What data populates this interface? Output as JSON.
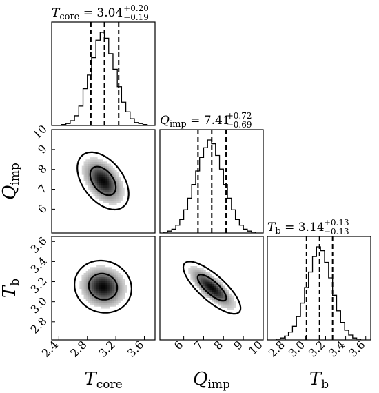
{
  "chart_data": {
    "type": "corner",
    "parameters": [
      {
        "key": "T_core",
        "label": "T",
        "label_sub": "core",
        "median": "3.04",
        "err_plus": "+0.20",
        "err_minus": "−0.19",
        "quantiles": [
          2.85,
          3.04,
          3.24
        ],
        "range": [
          2.3,
          3.75
        ],
        "ticks": [
          "2.4",
          "2.8",
          "3.2",
          "3.6"
        ],
        "hist_x": [
          2.47,
          2.53,
          2.59,
          2.65,
          2.71,
          2.77,
          2.83,
          2.89,
          2.95,
          3.01,
          3.07,
          3.13,
          3.19,
          3.25,
          3.31,
          3.37,
          3.43,
          3.49,
          3.55,
          3.61
        ],
        "hist_counts": [
          1,
          2,
          5,
          10,
          20,
          38,
          52,
          70,
          88,
          96,
          90,
          74,
          58,
          40,
          24,
          14,
          7,
          3,
          2,
          1
        ]
      },
      {
        "key": "Q_imp",
        "label": "Q",
        "label_sub": "imp",
        "median": "7.41",
        "err_plus": "+0.72",
        "err_minus": "−0.69",
        "quantiles": [
          6.72,
          7.41,
          8.13
        ],
        "range": [
          4.8,
          10.0
        ],
        "ticks": [
          "6",
          "7",
          "8",
          "9",
          "10"
        ],
        "y_ticks": [
          "6",
          "7",
          "8",
          "9",
          "10"
        ],
        "hist_x": [
          5.1,
          5.3,
          5.5,
          5.7,
          5.9,
          6.1,
          6.3,
          6.5,
          6.7,
          6.9,
          7.1,
          7.3,
          7.5,
          7.7,
          7.9,
          8.1,
          8.3,
          8.5,
          8.7,
          8.9,
          9.1,
          9.3,
          9.5
        ],
        "hist_counts": [
          1,
          2,
          4,
          8,
          14,
          24,
          36,
          50,
          64,
          78,
          88,
          96,
          92,
          80,
          66,
          50,
          36,
          24,
          14,
          8,
          4,
          2,
          1
        ]
      },
      {
        "key": "T_b",
        "label": "T",
        "label_sub": "b",
        "median": "3.14",
        "err_plus": "+0.13",
        "err_minus": "−0.13",
        "quantiles": [
          3.01,
          3.14,
          3.27
        ],
        "range": [
          2.62,
          3.65
        ],
        "ticks": [
          "2.8",
          "3.0",
          "3.2",
          "3.4",
          "3.6"
        ],
        "y_ticks": [
          "2.8",
          "3.0",
          "3.2",
          "3.4",
          "3.6"
        ],
        "hist_x": [
          2.73,
          2.77,
          2.81,
          2.85,
          2.89,
          2.93,
          2.97,
          3.01,
          3.05,
          3.09,
          3.13,
          3.17,
          3.21,
          3.25,
          3.29,
          3.33,
          3.37,
          3.41,
          3.45,
          3.49,
          3.53
        ],
        "hist_counts": [
          1,
          2,
          4,
          8,
          14,
          24,
          38,
          54,
          70,
          86,
          96,
          92,
          80,
          64,
          46,
          30,
          18,
          10,
          5,
          2,
          1
        ]
      }
    ],
    "joint": [
      {
        "x": "T_core",
        "y": "Q_imp",
        "mean": [
          3.02,
          7.42
        ],
        "sd": [
          0.18,
          0.72
        ],
        "rho": -0.45
      },
      {
        "x": "T_core",
        "y": "T_b",
        "mean": [
          3.02,
          3.15
        ],
        "sd": [
          0.2,
          0.13
        ],
        "rho": -0.08
      },
      {
        "x": "Q_imp",
        "y": "T_b",
        "mean": [
          7.42,
          3.14
        ],
        "sd": [
          0.72,
          0.13
        ],
        "rho": -0.78
      }
    ],
    "contour_levels_sigma": [
      1,
      2
    ]
  }
}
